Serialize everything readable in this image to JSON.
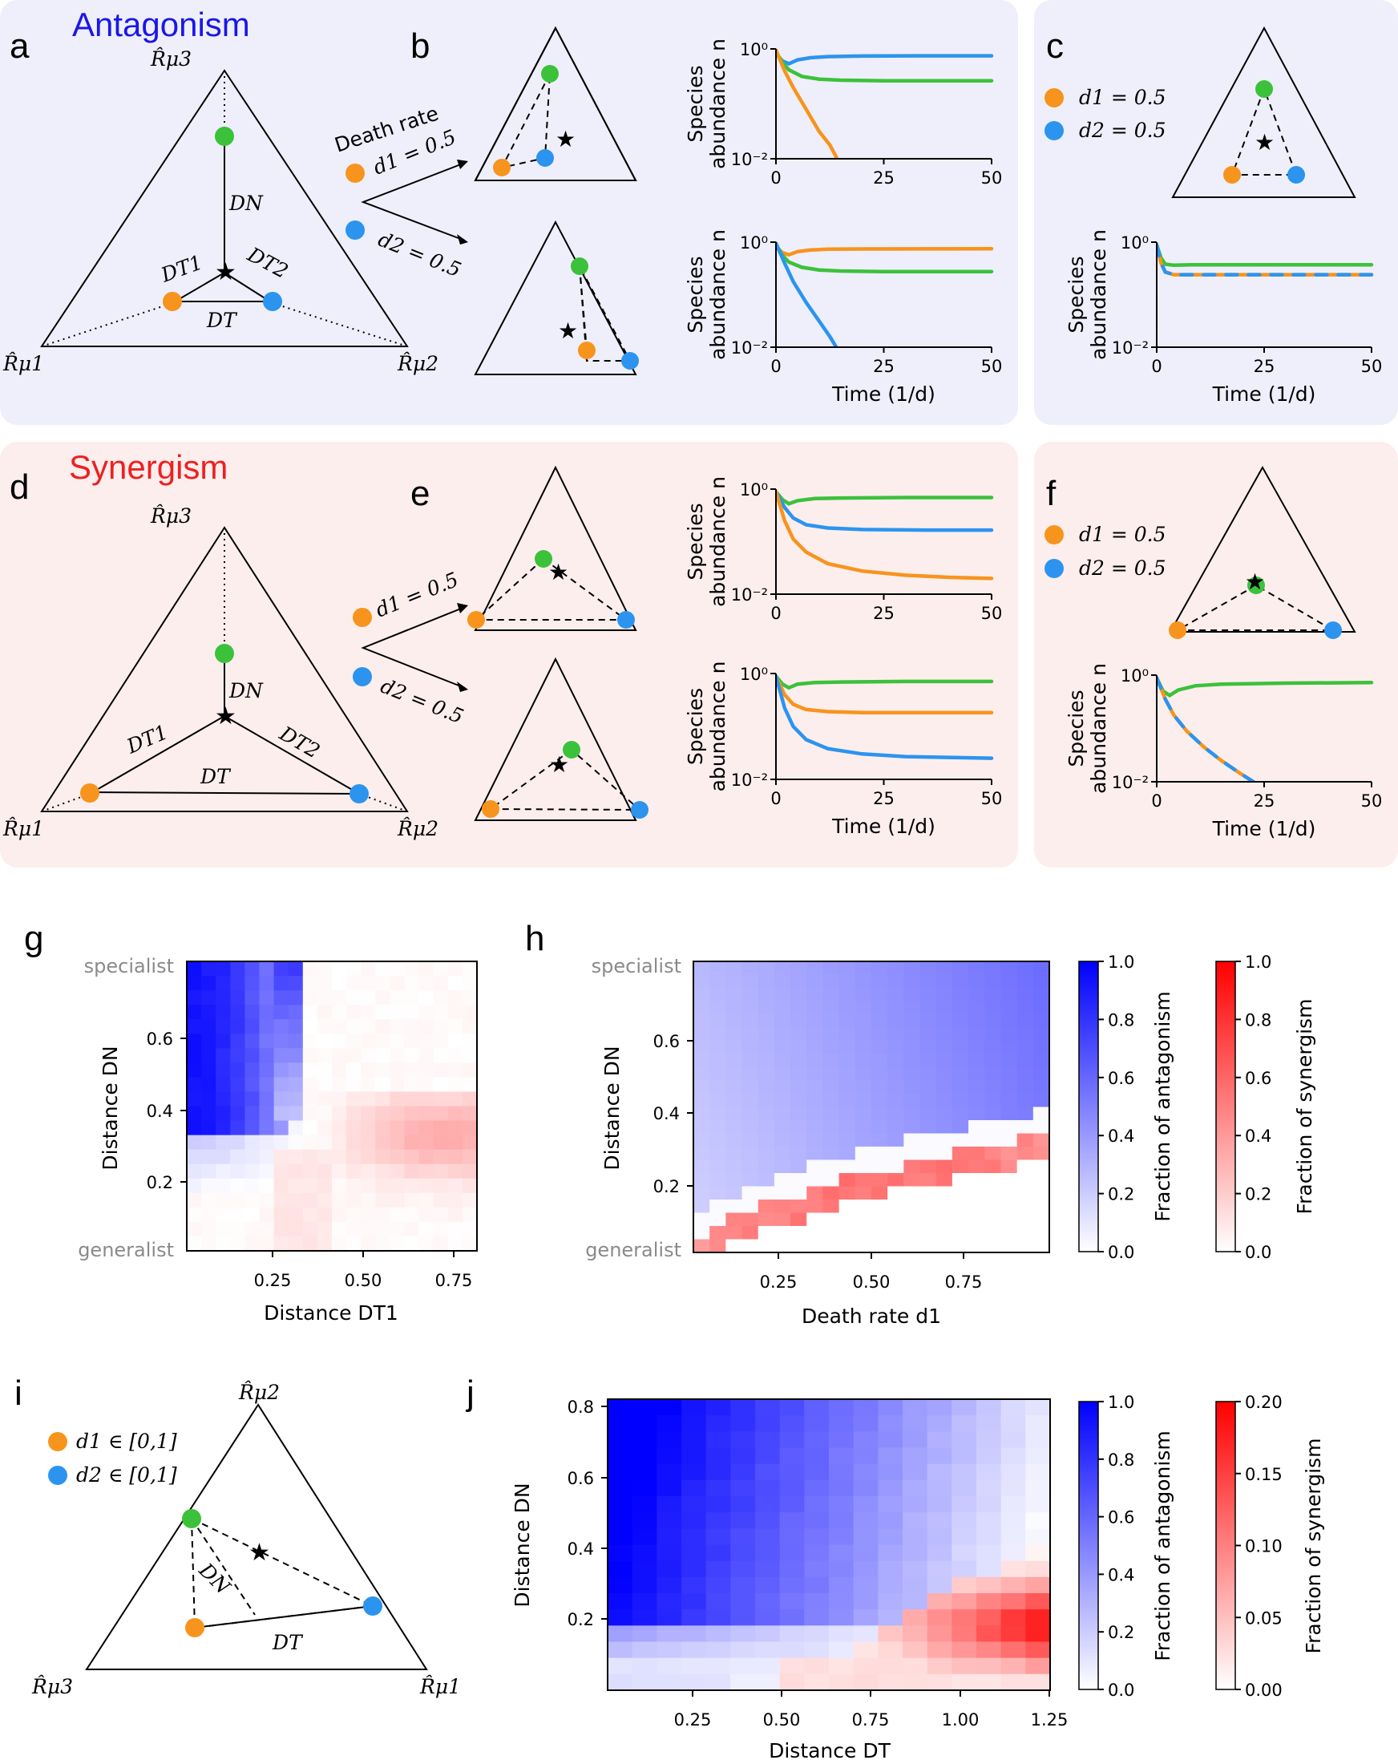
{
  "colors": {
    "orange": "#f7941d",
    "blue": "#2c94ef",
    "green": "#3cc13b",
    "antagonism_bg": "#efeffb",
    "synergism_bg": "#fdeeee",
    "antagonism_title": "#1a17e8",
    "synergism_title": "#ee2020"
  },
  "panel_labels": {
    "a": "a",
    "b": "b",
    "c": "c",
    "d": "d",
    "e": "e",
    "f": "f",
    "g": "g",
    "h": "h",
    "i": "i",
    "j": "j"
  },
  "titles": {
    "antagonism": "Antagonism",
    "synergism": "Synergism"
  },
  "simplex_labels": {
    "r_mu1": "R̂μ1",
    "r_mu2": "R̂μ2",
    "r_mu3": "R̂μ3",
    "d_n": "DN",
    "d_t": "DT",
    "d_t1": "DT1",
    "d_t2": "DT2"
  },
  "death_rate": {
    "heading": "Death rate",
    "d1": "d1 = 0.5",
    "d2": "d2 = 0.5",
    "d1_range": "d1 ∈ [0,1]",
    "d2_range": "d2 ∈ [0,1]"
  },
  "timeseries": {
    "ylabel_line1": "Species",
    "ylabel_line2": "abundance n",
    "xlabel": "Time (1/d)",
    "y_ticks": [
      "10⁰",
      "10⁻²"
    ],
    "x_ticks": [
      "0",
      "25",
      "50"
    ]
  },
  "chart_data": [
    {
      "id": "b-top",
      "type": "line",
      "xlim": [
        0,
        50
      ],
      "ylim_log10": [
        -2,
        0
      ],
      "series": [
        {
          "name": "blue",
          "points": [
            [
              0,
              -0.08
            ],
            [
              1.5,
              -0.22
            ],
            [
              3,
              -0.27
            ],
            [
              5,
              -0.2
            ],
            [
              8,
              -0.16
            ],
            [
              12,
              -0.14
            ],
            [
              20,
              -0.13
            ],
            [
              35,
              -0.125
            ],
            [
              50,
              -0.125
            ]
          ]
        },
        {
          "name": "green",
          "points": [
            [
              0,
              -0.05
            ],
            [
              1.5,
              -0.25
            ],
            [
              3,
              -0.38
            ],
            [
              6,
              -0.5
            ],
            [
              10,
              -0.55
            ],
            [
              15,
              -0.57
            ],
            [
              25,
              -0.58
            ],
            [
              50,
              -0.58
            ]
          ]
        },
        {
          "name": "orange",
          "points": [
            [
              0,
              -0.02
            ],
            [
              2,
              -0.4
            ],
            [
              4,
              -0.7
            ],
            [
              7,
              -1.1
            ],
            [
              10,
              -1.5
            ],
            [
              12.5,
              -1.75
            ],
            [
              14.2,
              -2.0
            ]
          ]
        }
      ]
    },
    {
      "id": "b-bottom",
      "type": "line",
      "xlim": [
        0,
        50
      ],
      "ylim_log10": [
        -2,
        0
      ],
      "series": [
        {
          "name": "orange",
          "points": [
            [
              0,
              -0.08
            ],
            [
              1.5,
              -0.2
            ],
            [
              3,
              -0.24
            ],
            [
              5,
              -0.18
            ],
            [
              8,
              -0.15
            ],
            [
              12,
              -0.135
            ],
            [
              20,
              -0.13
            ],
            [
              50,
              -0.125
            ]
          ]
        },
        {
          "name": "green",
          "points": [
            [
              0,
              -0.05
            ],
            [
              1.5,
              -0.25
            ],
            [
              3,
              -0.38
            ],
            [
              6,
              -0.48
            ],
            [
              10,
              -0.53
            ],
            [
              15,
              -0.55
            ],
            [
              25,
              -0.56
            ],
            [
              50,
              -0.56
            ]
          ]
        },
        {
          "name": "blue",
          "points": [
            [
              0,
              -0.02
            ],
            [
              2,
              -0.4
            ],
            [
              4,
              -0.75
            ],
            [
              7,
              -1.15
            ],
            [
              10,
              -1.5
            ],
            [
              12.5,
              -1.8
            ],
            [
              14,
              -2.0
            ]
          ]
        }
      ]
    },
    {
      "id": "c",
      "type": "line",
      "xlim": [
        0,
        50
      ],
      "ylim_log10": [
        -2,
        0
      ],
      "series": [
        {
          "name": "green",
          "points": [
            [
              0,
              -0.05
            ],
            [
              1,
              -0.3
            ],
            [
              2,
              -0.42
            ],
            [
              4,
              -0.44
            ],
            [
              8,
              -0.43
            ],
            [
              20,
              -0.43
            ],
            [
              50,
              -0.43
            ]
          ]
        },
        {
          "name": "orange-blue-dashed",
          "points": [
            [
              0,
              -0.05
            ],
            [
              1,
              -0.4
            ],
            [
              2,
              -0.57
            ],
            [
              4,
              -0.62
            ],
            [
              8,
              -0.62
            ],
            [
              20,
              -0.62
            ],
            [
              50,
              -0.62
            ]
          ]
        }
      ]
    },
    {
      "id": "e-top",
      "type": "line",
      "xlim": [
        0,
        50
      ],
      "ylim_log10": [
        -2,
        0
      ],
      "series": [
        {
          "name": "green",
          "points": [
            [
              0,
              -0.05
            ],
            [
              1.5,
              -0.2
            ],
            [
              3,
              -0.28
            ],
            [
              5,
              -0.22
            ],
            [
              9,
              -0.18
            ],
            [
              15,
              -0.17
            ],
            [
              30,
              -0.16
            ],
            [
              50,
              -0.16
            ]
          ]
        },
        {
          "name": "blue",
          "points": [
            [
              0,
              -0.05
            ],
            [
              2,
              -0.35
            ],
            [
              4,
              -0.55
            ],
            [
              7,
              -0.68
            ],
            [
              12,
              -0.74
            ],
            [
              20,
              -0.77
            ],
            [
              35,
              -0.78
            ],
            [
              50,
              -0.78
            ]
          ]
        },
        {
          "name": "orange",
          "points": [
            [
              0,
              -0.05
            ],
            [
              2,
              -0.6
            ],
            [
              4,
              -0.95
            ],
            [
              7,
              -1.2
            ],
            [
              12,
              -1.42
            ],
            [
              20,
              -1.56
            ],
            [
              30,
              -1.64
            ],
            [
              40,
              -1.68
            ],
            [
              50,
              -1.7
            ]
          ]
        }
      ]
    },
    {
      "id": "e-bottom",
      "type": "line",
      "xlim": [
        0,
        50
      ],
      "ylim_log10": [
        -2,
        0
      ],
      "series": [
        {
          "name": "green",
          "points": [
            [
              0,
              -0.05
            ],
            [
              1.5,
              -0.2
            ],
            [
              3,
              -0.27
            ],
            [
              5,
              -0.2
            ],
            [
              9,
              -0.17
            ],
            [
              15,
              -0.16
            ],
            [
              30,
              -0.15
            ],
            [
              50,
              -0.15
            ]
          ]
        },
        {
          "name": "orange",
          "points": [
            [
              0,
              -0.05
            ],
            [
              2,
              -0.4
            ],
            [
              4,
              -0.58
            ],
            [
              7,
              -0.68
            ],
            [
              12,
              -0.72
            ],
            [
              20,
              -0.74
            ],
            [
              50,
              -0.74
            ]
          ]
        },
        {
          "name": "blue",
          "points": [
            [
              0,
              -0.05
            ],
            [
              2,
              -0.65
            ],
            [
              4,
              -1.0
            ],
            [
              7,
              -1.25
            ],
            [
              12,
              -1.42
            ],
            [
              20,
              -1.52
            ],
            [
              30,
              -1.57
            ],
            [
              50,
              -1.6
            ]
          ]
        }
      ]
    },
    {
      "id": "f",
      "type": "line",
      "xlim": [
        0,
        50
      ],
      "ylim_log10": [
        -2,
        0
      ],
      "series": [
        {
          "name": "green",
          "points": [
            [
              0,
              -0.05
            ],
            [
              1.5,
              -0.3
            ],
            [
              3,
              -0.38
            ],
            [
              5,
              -0.28
            ],
            [
              9,
              -0.2
            ],
            [
              15,
              -0.17
            ],
            [
              30,
              -0.15
            ],
            [
              50,
              -0.14
            ]
          ]
        },
        {
          "name": "orange-blue-dashed",
          "points": [
            [
              0,
              -0.05
            ],
            [
              2,
              -0.45
            ],
            [
              4,
              -0.75
            ],
            [
              7,
              -1.05
            ],
            [
              11,
              -1.35
            ],
            [
              15,
              -1.6
            ],
            [
              19,
              -1.82
            ],
            [
              22.5,
              -2.0
            ]
          ]
        }
      ]
    }
  ],
  "heatmaps": {
    "g": {
      "ylabel": "Distance DN",
      "xlabel": "Distance DT1",
      "x_ticks": [
        "0.25",
        "0.50",
        "0.75"
      ],
      "y_ticks": [
        "0.6",
        "0.4",
        "0.2"
      ],
      "top_label": "specialist",
      "bottom_label": "generalist"
    },
    "h": {
      "ylabel": "Distance DN",
      "xlabel": "Death rate d1",
      "x_ticks": [
        "0.25",
        "0.50",
        "0.75"
      ],
      "y_ticks": [
        "0.6",
        "0.4",
        "0.2"
      ],
      "top_label": "specialist",
      "bottom_label": "generalist"
    },
    "j": {
      "ylabel": "Distance DN",
      "xlabel": "Distance DT",
      "x_ticks": [
        "0.25",
        "0.50",
        "0.75",
        "1.00",
        "1.25"
      ],
      "y_ticks": [
        "0.8",
        "0.6",
        "0.4",
        "0.2"
      ]
    }
  },
  "colorbars": {
    "antagonism_label": "Fraction of antagonism",
    "synergism_label": "Fraction of synergism",
    "h_ticks_antagonism": [
      "1.0",
      "0.8",
      "0.6",
      "0.4",
      "0.2",
      "0.0"
    ],
    "h_ticks_synergism": [
      "1.0",
      "0.8",
      "0.6",
      "0.4",
      "0.2",
      "0.0"
    ],
    "j_ticks_antagonism": [
      "1.0",
      "0.8",
      "0.6",
      "0.4",
      "0.2",
      "0.0"
    ],
    "j_ticks_synergism": [
      "0.20",
      "0.15",
      "0.10",
      "0.05",
      "0.00"
    ]
  }
}
